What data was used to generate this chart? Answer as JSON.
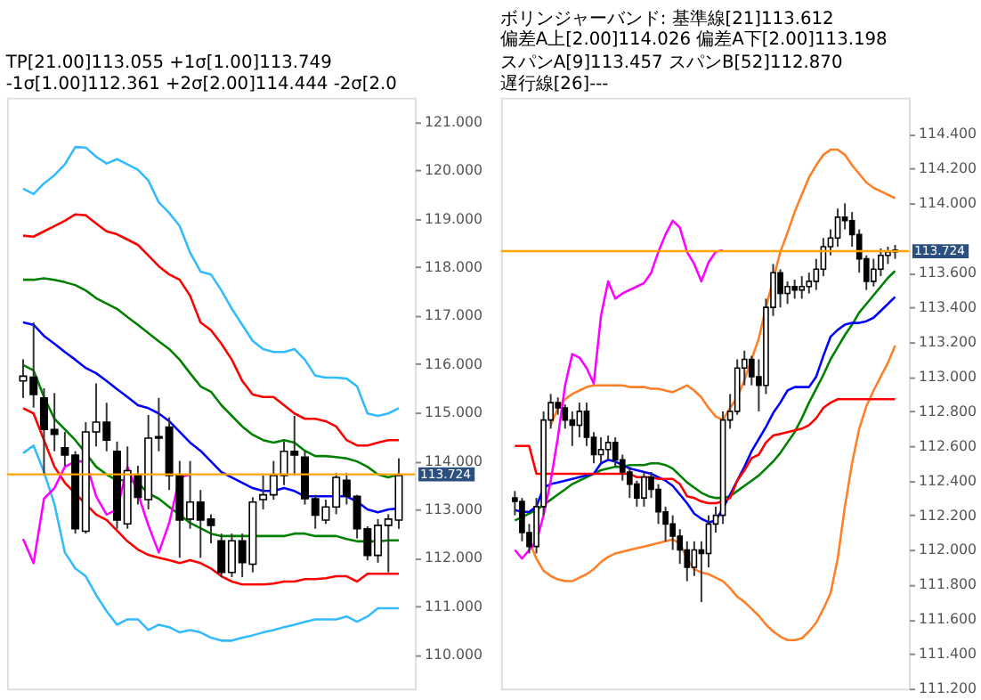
{
  "chart_data": [
    {
      "type": "candlestick",
      "title": "TP[21.00]113.055 +1σ[1.00]113.749 -1σ[1.00]112.361 +2σ[2.00]114.444 -2σ[2.0",
      "categories": [
        null,
        null,
        null,
        null,
        null,
        null,
        null,
        null,
        null,
        null,
        null,
        null,
        null,
        null,
        null,
        null,
        null,
        null,
        null,
        null,
        null,
        null,
        null,
        null,
        null,
        null,
        null,
        null,
        null,
        null,
        null,
        null,
        null,
        null,
        null,
        null,
        null
      ],
      "ohlc": [
        [
          115.65,
          116.1,
          115.3,
          115.75
        ],
        [
          115.73,
          116.86,
          115.1,
          115.37
        ],
        [
          115.3,
          115.5,
          113.7,
          114.65
        ],
        [
          114.65,
          115.4,
          114.2,
          114.55
        ],
        [
          114.27,
          114.6,
          113.9,
          114.12
        ],
        [
          114.12,
          114.2,
          112.5,
          112.6
        ],
        [
          112.55,
          114.8,
          112.5,
          114.6
        ],
        [
          114.6,
          115.6,
          114.3,
          114.8
        ],
        [
          114.8,
          115.2,
          114.2,
          114.43
        ],
        [
          114.2,
          114.4,
          112.6,
          112.78
        ],
        [
          112.7,
          114.3,
          112.6,
          113.8
        ],
        [
          113.7,
          113.9,
          113.1,
          113.25
        ],
        [
          113.2,
          114.95,
          113.0,
          114.47
        ],
        [
          114.47,
          115.3,
          114.2,
          114.5
        ],
        [
          114.7,
          114.9,
          113.4,
          113.7
        ],
        [
          113.7,
          114.0,
          112.0,
          112.78
        ],
        [
          112.8,
          114.0,
          112.6,
          113.15
        ],
        [
          113.15,
          113.4,
          112.0,
          112.78
        ],
        [
          112.8,
          112.9,
          112.3,
          112.67
        ],
        [
          112.35,
          112.5,
          111.6,
          111.7
        ],
        [
          111.7,
          112.5,
          111.6,
          112.35
        ],
        [
          112.35,
          112.5,
          111.6,
          111.9
        ],
        [
          111.87,
          113.25,
          111.7,
          113.15
        ],
        [
          113.2,
          113.7,
          113.0,
          113.3
        ],
        [
          113.3,
          114.0,
          113.2,
          113.7
        ],
        [
          113.7,
          114.4,
          113.5,
          114.2
        ],
        [
          114.2,
          114.93,
          113.7,
          114.12
        ],
        [
          114.08,
          114.2,
          113.1,
          113.22
        ],
        [
          113.22,
          113.3,
          112.6,
          112.88
        ],
        [
          112.78,
          113.2,
          112.7,
          113.05
        ],
        [
          113.05,
          113.75,
          112.9,
          113.66
        ],
        [
          113.6,
          113.75,
          113.1,
          113.27
        ],
        [
          113.27,
          113.3,
          112.4,
          112.6
        ],
        [
          112.6,
          112.65,
          111.95,
          112.05
        ],
        [
          112.05,
          112.8,
          111.9,
          112.67
        ],
        [
          112.67,
          112.9,
          111.7,
          112.8
        ],
        [
          112.78,
          114.05,
          112.6,
          113.7
        ]
      ],
      "series": [
        {
          "type": "line",
          "color": "#33bbff",
          "values": [
            119.62,
            119.51,
            119.73,
            119.9,
            120.12,
            120.48,
            120.47,
            120.28,
            120.14,
            120.23,
            120.12,
            120.01,
            119.79,
            119.34,
            119.12,
            118.85,
            118.3,
            117.91,
            117.85,
            117.52,
            117.14,
            116.81,
            116.48,
            116.31,
            116.25,
            116.25,
            116.31,
            116.09,
            115.76,
            115.72,
            115.72,
            115.7,
            115.54,
            114.98,
            114.93,
            114.98,
            115.09
          ]
        },
        {
          "type": "line",
          "color": "#ff0000",
          "values": [
            118.65,
            118.63,
            118.74,
            118.85,
            118.96,
            119.09,
            119.07,
            118.9,
            118.74,
            118.68,
            118.57,
            118.46,
            118.24,
            118.02,
            117.85,
            117.74,
            117.41,
            116.86,
            116.7,
            116.42,
            116.09,
            115.65,
            115.37,
            115.32,
            115.32,
            115.15,
            114.98,
            114.87,
            114.87,
            114.82,
            114.71,
            114.43,
            114.32,
            114.32,
            114.38,
            114.43,
            114.43
          ]
        },
        {
          "type": "line",
          "color": "#008000",
          "values": [
            117.74,
            117.74,
            117.77,
            117.74,
            117.69,
            117.63,
            117.52,
            117.36,
            117.25,
            117.14,
            116.97,
            116.81,
            116.64,
            116.47,
            116.31,
            116.09,
            115.81,
            115.54,
            115.43,
            115.15,
            114.93,
            114.71,
            114.54,
            114.43,
            114.38,
            114.43,
            114.38,
            114.21,
            114.1,
            114.1,
            114.08,
            114.05,
            113.99,
            113.88,
            113.72,
            113.66,
            113.72
          ]
        },
        {
          "type": "line",
          "color": "#0000ff",
          "values": [
            116.86,
            116.81,
            116.58,
            116.42,
            116.25,
            116.09,
            115.92,
            115.81,
            115.65,
            115.48,
            115.32,
            115.15,
            115.09,
            114.98,
            114.82,
            114.6,
            114.38,
            114.21,
            113.99,
            113.77,
            113.66,
            113.55,
            113.44,
            113.38,
            113.38,
            113.44,
            113.38,
            113.27,
            113.27,
            113.27,
            113.27,
            113.27,
            113.16,
            113.0,
            112.94,
            113.0,
            113.02
          ]
        },
        {
          "type": "line",
          "color": "#008000",
          "values": [
            115.98,
            115.87,
            115.32,
            114.87,
            114.65,
            114.43,
            114.16,
            113.88,
            113.72,
            113.6,
            113.6,
            113.55,
            113.33,
            113.22,
            113.05,
            112.89,
            112.72,
            112.61,
            112.5,
            112.45,
            112.45,
            112.45,
            112.45,
            112.45,
            112.45,
            112.45,
            112.5,
            112.5,
            112.45,
            112.45,
            112.45,
            112.39,
            112.34,
            112.34,
            112.34,
            112.36,
            112.36
          ]
        },
        {
          "type": "line",
          "color": "#ff0000",
          "values": [
            115.09,
            114.98,
            114.43,
            113.88,
            113.55,
            113.33,
            113.11,
            112.89,
            112.78,
            112.56,
            112.34,
            112.17,
            112.06,
            112.0,
            111.95,
            111.89,
            111.95,
            111.89,
            111.78,
            111.62,
            111.51,
            111.45,
            111.45,
            111.45,
            111.47,
            111.51,
            111.51,
            111.56,
            111.56,
            111.58,
            111.62,
            111.62,
            111.51,
            111.67,
            111.67,
            111.67,
            111.67
          ]
        },
        {
          "type": "line",
          "color": "#33bbff",
          "values": [
            114.16,
            114.32,
            113.77,
            113.11,
            112.11,
            111.78,
            111.62,
            111.23,
            110.9,
            110.62,
            110.73,
            110.73,
            110.51,
            110.62,
            110.57,
            110.46,
            110.51,
            110.46,
            110.35,
            110.29,
            110.29,
            110.35,
            110.4,
            110.46,
            110.51,
            110.57,
            110.62,
            110.68,
            110.73,
            110.73,
            110.73,
            110.79,
            110.68,
            110.79,
            110.96,
            110.96,
            110.96
          ]
        },
        {
          "type": "line",
          "color": "#ff00ff",
          "values": [
            112.39,
            111.89,
            113.22,
            113.44,
            113.88,
            113.99,
            113.99,
            113.27,
            112.89,
            113.0,
            113.88,
            113.33,
            112.67,
            112.11,
            112.72,
            113.66,
            113.72,
            null,
            null,
            null,
            null,
            null,
            null,
            null,
            null,
            null,
            null,
            null,
            null,
            null,
            null,
            null,
            null,
            null,
            null,
            null,
            null
          ]
        }
      ],
      "ylim": [
        109.3,
        121.5
      ],
      "yticks": [
        {
          "value": 110,
          "label": "110.000"
        },
        {
          "value": 111,
          "label": "111.000"
        },
        {
          "value": 112,
          "label": "112.000"
        },
        {
          "value": 113,
          "label": "113.000"
        },
        {
          "value": 114,
          "label": "114.000"
        },
        {
          "value": 115,
          "label": "115.000"
        },
        {
          "value": 116,
          "label": "116.000"
        },
        {
          "value": 117,
          "label": "117.000"
        },
        {
          "value": 118,
          "label": "118.000"
        },
        {
          "value": 119,
          "label": "119.000"
        },
        {
          "value": 120,
          "label": "120.000"
        },
        {
          "value": 121,
          "label": "121.000"
        }
      ],
      "ref_lines": [
        {
          "axis": "y",
          "value": 113.724,
          "label": "113.724",
          "color": "#ffa500"
        }
      ],
      "tick_labels": "y",
      "grid": false,
      "legend": false
    },
    {
      "type": "candlestick",
      "title": "ボリンジャーバンド: 基準線[21]113.612 偏差A上[2.00]114.026 偏差A下[2.00]113.198",
      "subtitle": "スパンA[9]113.457 スパンB[52]112.870 遅行線[26]---",
      "categories": [
        null,
        null,
        null,
        null,
        null,
        null,
        null,
        null,
        null,
        null,
        null,
        null,
        null,
        null,
        null,
        null,
        null,
        null,
        null,
        null,
        null,
        null,
        null,
        null,
        null,
        null,
        null,
        null,
        null,
        null,
        null,
        null,
        null,
        null,
        null,
        null,
        null,
        null,
        null,
        null,
        null,
        null,
        null,
        null,
        null,
        null,
        null,
        null,
        null,
        null,
        null,
        null,
        null,
        null
      ],
      "ohlc": [
        [
          112.3,
          112.34,
          112.2,
          112.28
        ],
        [
          112.28,
          112.3,
          112.05,
          112.1
        ],
        [
          112.1,
          112.15,
          111.98,
          112.02
        ],
        [
          112.02,
          112.3,
          111.98,
          112.25
        ],
        [
          112.25,
          112.8,
          112.2,
          112.75
        ],
        [
          112.75,
          112.9,
          112.7,
          112.85
        ],
        [
          112.85,
          112.88,
          112.78,
          112.82
        ],
        [
          112.82,
          112.84,
          112.7,
          112.75
        ],
        [
          112.75,
          112.8,
          112.6,
          112.72
        ],
        [
          112.72,
          112.85,
          112.65,
          112.8
        ],
        [
          112.8,
          112.85,
          112.6,
          112.65
        ],
        [
          112.65,
          112.68,
          112.5,
          112.55
        ],
        [
          112.55,
          112.65,
          112.5,
          112.58
        ],
        [
          112.58,
          112.66,
          112.52,
          112.62
        ],
        [
          112.62,
          112.65,
          112.48,
          112.52
        ],
        [
          112.52,
          112.55,
          112.4,
          112.45
        ],
        [
          112.45,
          112.48,
          112.3,
          112.38
        ],
        [
          112.38,
          112.4,
          112.25,
          112.3
        ],
        [
          112.3,
          112.45,
          112.25,
          112.42
        ],
        [
          112.42,
          112.45,
          112.3,
          112.35
        ],
        [
          112.35,
          112.38,
          112.15,
          112.22
        ],
        [
          112.22,
          112.25,
          112.05,
          112.15
        ],
        [
          112.15,
          112.2,
          112.0,
          112.08
        ],
        [
          112.08,
          112.12,
          111.92,
          112.0
        ],
        [
          112.0,
          112.05,
          111.82,
          111.9
        ],
        [
          111.9,
          112.05,
          111.85,
          112.0
        ],
        [
          112.0,
          112.05,
          111.7,
          111.98
        ],
        [
          111.98,
          112.2,
          111.9,
          112.15
        ],
        [
          112.15,
          112.25,
          112.1,
          112.2
        ],
        [
          112.2,
          112.8,
          112.15,
          112.75
        ],
        [
          112.75,
          112.9,
          112.7,
          112.8
        ],
        [
          112.8,
          113.1,
          112.78,
          113.05
        ],
        [
          113.05,
          113.15,
          112.95,
          113.1
        ],
        [
          113.1,
          113.12,
          112.95,
          113.0
        ],
        [
          113.0,
          113.1,
          112.8,
          112.95
        ],
        [
          112.95,
          113.45,
          112.9,
          113.4
        ],
        [
          113.4,
          113.65,
          113.35,
          113.6
        ],
        [
          113.6,
          113.62,
          113.4,
          113.48
        ],
        [
          113.48,
          113.55,
          113.42,
          113.52
        ],
        [
          113.52,
          113.56,
          113.45,
          113.5
        ],
        [
          113.5,
          113.58,
          113.45,
          113.52
        ],
        [
          113.52,
          113.6,
          113.48,
          113.55
        ],
        [
          113.55,
          113.68,
          113.5,
          113.62
        ],
        [
          113.62,
          113.8,
          113.58,
          113.75
        ],
        [
          113.75,
          113.85,
          113.7,
          113.8
        ],
        [
          113.8,
          113.97,
          113.75,
          113.92
        ],
        [
          113.92,
          114.0,
          113.85,
          113.9
        ],
        [
          113.9,
          113.95,
          113.75,
          113.82
        ],
        [
          113.82,
          113.85,
          113.6,
          113.68
        ],
        [
          113.68,
          113.7,
          113.5,
          113.55
        ],
        [
          113.55,
          113.68,
          113.52,
          113.62
        ],
        [
          113.62,
          113.74,
          113.58,
          113.7
        ],
        [
          113.7,
          113.75,
          113.65,
          113.72
        ],
        [
          113.72,
          113.76,
          113.68,
          113.73
        ]
      ],
      "series": [
        {
          "type": "line",
          "color": "#ff7f27",
          "values": [
            null,
            null,
            null,
            null,
            null,
            112.72,
            112.82,
            112.87,
            112.9,
            112.92,
            112.94,
            112.95,
            112.95,
            112.95,
            112.95,
            112.95,
            112.94,
            112.94,
            112.94,
            112.93,
            112.93,
            112.92,
            112.91,
            112.93,
            112.95,
            112.92,
            112.88,
            112.82,
            112.77,
            112.75,
            112.82,
            112.88,
            112.98,
            113.1,
            113.22,
            113.4,
            null,
            113.72,
            113.83,
            113.95,
            114.05,
            114.15,
            114.22,
            114.28,
            114.31,
            114.31,
            114.28,
            114.22,
            114.17,
            114.12,
            114.09,
            114.07,
            114.05,
            114.03
          ]
        },
        {
          "type": "line",
          "color": "#ff7f27",
          "values": [
            null,
            null,
            112.05,
            111.95,
            111.88,
            111.85,
            111.83,
            111.82,
            111.82,
            111.84,
            111.86,
            111.89,
            111.93,
            111.96,
            111.98,
            111.99,
            112.0,
            112.01,
            112.02,
            112.03,
            112.04,
            112.05,
            112.06,
            112.04,
            111.95,
            111.89,
            111.87,
            111.86,
            111.84,
            111.82,
            111.78,
            111.73,
            111.7,
            111.66,
            111.62,
            111.57,
            111.53,
            111.5,
            111.48,
            111.48,
            111.49,
            111.53,
            111.58,
            111.66,
            111.75,
            111.95,
            112.25,
            112.5,
            112.7,
            112.83,
            112.92,
            113.0,
            113.08,
            113.18
          ]
        },
        {
          "type": "line",
          "color": "#008000",
          "values": [
            112.17,
            112.19,
            112.21,
            112.23,
            112.26,
            112.29,
            112.32,
            112.35,
            112.38,
            112.4,
            112.42,
            112.44,
            112.46,
            112.47,
            112.48,
            112.48,
            112.49,
            112.49,
            112.49,
            112.5,
            112.5,
            112.49,
            112.47,
            112.43,
            112.39,
            112.36,
            112.33,
            112.31,
            112.3,
            112.3,
            112.31,
            112.34,
            112.37,
            112.4,
            112.43,
            112.47,
            112.51,
            112.56,
            112.62,
            112.68,
            112.76,
            112.85,
            112.93,
            113.01,
            113.1,
            113.17,
            113.24,
            113.3,
            113.37,
            113.42,
            113.47,
            113.52,
            113.57,
            113.61
          ]
        },
        {
          "type": "line",
          "color": "#0000ff",
          "values": [
            112.23,
            112.22,
            112.22,
            112.25,
            112.36,
            112.38,
            112.39,
            112.4,
            112.41,
            112.42,
            112.43,
            112.44,
            112.5,
            112.52,
            112.51,
            112.49,
            112.47,
            112.46,
            112.45,
            112.44,
            112.42,
            112.4,
            112.37,
            112.32,
            112.27,
            112.21,
            112.18,
            112.16,
            112.17,
            112.24,
            112.32,
            112.4,
            112.48,
            112.57,
            112.64,
            112.71,
            112.79,
            112.85,
            112.92,
            112.94,
            112.94,
            112.94,
            113.0,
            113.12,
            113.23,
            113.27,
            113.3,
            113.31,
            113.31,
            113.32,
            113.34,
            113.38,
            113.42,
            113.46
          ]
        },
        {
          "type": "line",
          "color": "#ff0000",
          "values": [
            112.6,
            112.6,
            112.6,
            112.44,
            112.44,
            112.44,
            112.44,
            112.44,
            112.44,
            112.44,
            112.44,
            112.44,
            112.44,
            112.44,
            112.44,
            112.44,
            112.44,
            112.42,
            112.42,
            112.42,
            112.41,
            112.41,
            112.41,
            112.38,
            112.31,
            112.3,
            112.28,
            112.27,
            112.27,
            112.28,
            112.3,
            112.4,
            112.46,
            112.53,
            112.55,
            112.62,
            112.66,
            112.67,
            112.68,
            112.69,
            112.7,
            112.72,
            112.76,
            112.82,
            112.85,
            112.87,
            112.87,
            112.87,
            112.87,
            112.87,
            112.87,
            112.87,
            112.87,
            112.87
          ]
        },
        {
          "type": "line",
          "color": "#ff00ff",
          "values": [
            112.0,
            111.95,
            112.0,
            112.05,
            112.2,
            112.4,
            112.65,
            112.95,
            113.13,
            113.11,
            113.05,
            112.96,
            113.35,
            113.55,
            113.45,
            113.48,
            113.5,
            113.52,
            113.54,
            113.6,
            113.72,
            113.82,
            113.9,
            113.86,
            113.72,
            113.65,
            113.55,
            113.66,
            113.72,
            113.73,
            null,
            null,
            null,
            null,
            null,
            null,
            null,
            null,
            null,
            null,
            null,
            null,
            null,
            null,
            null,
            null,
            null,
            null,
            null,
            null,
            null,
            null,
            null,
            null
          ]
        }
      ],
      "ylim": [
        111.2,
        114.61
      ],
      "yticks": [
        {
          "value": 111.2,
          "label": "111.200"
        },
        {
          "value": 111.4,
          "label": "111.400"
        },
        {
          "value": 111.6,
          "label": "111.600"
        },
        {
          "value": 111.8,
          "label": "111.800"
        },
        {
          "value": 112,
          "label": "112.000"
        },
        {
          "value": 112.2,
          "label": "112.200"
        },
        {
          "value": 112.4,
          "label": "112.400"
        },
        {
          "value": 112.6,
          "label": "112.600"
        },
        {
          "value": 112.8,
          "label": "112.800"
        },
        {
          "value": 113,
          "label": "113.000"
        },
        {
          "value": 113.2,
          "label": "113.200"
        },
        {
          "value": 113.4,
          "label": "113.400"
        },
        {
          "value": 113.6,
          "label": "113.600"
        },
        {
          "value": 114,
          "label": "114.000"
        },
        {
          "value": 114.2,
          "label": "114.200"
        },
        {
          "value": 114.4,
          "label": "114.400"
        }
      ],
      "ref_lines": [
        {
          "axis": "y",
          "value": 113.724,
          "label": "113.724",
          "color": "#ffa500"
        }
      ],
      "tick_labels": "y",
      "grid": false,
      "legend": false
    }
  ]
}
